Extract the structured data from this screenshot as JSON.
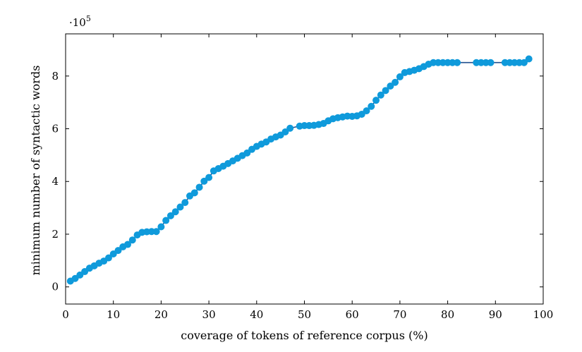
{
  "chart_data": {
    "type": "line",
    "xlabel": "coverage of tokens of reference corpus (%)",
    "ylabel": "minimum number of syntactic words",
    "y_multiplier": "·10",
    "y_multiplier_exponent": "5",
    "xlim": [
      0,
      100
    ],
    "ylim": [
      -0.65,
      9.6
    ],
    "xticks": [
      0,
      10,
      20,
      30,
      40,
      50,
      60,
      70,
      80,
      90,
      100
    ],
    "yticks": [
      0,
      2,
      4,
      6,
      8
    ],
    "grid": false,
    "line_color": "#1f4f8f",
    "marker_color": "#0f9adb",
    "series": [
      {
        "x": [
          1,
          2,
          3,
          4,
          5,
          6,
          7,
          8,
          9,
          10,
          11,
          12,
          13,
          14,
          15,
          16,
          17,
          18,
          19,
          20,
          21,
          22,
          23,
          24,
          25,
          26,
          27,
          28,
          29,
          30,
          31,
          32,
          33,
          34,
          35,
          36,
          37,
          38,
          39,
          40,
          41,
          42,
          43,
          44,
          45,
          46,
          47,
          49,
          50,
          51,
          52,
          53,
          54,
          55,
          56,
          57,
          58,
          59,
          60,
          61,
          62,
          63,
          64,
          65,
          66,
          67,
          68,
          69,
          70,
          71,
          72,
          73,
          74,
          75,
          76,
          77,
          78,
          79,
          80,
          81,
          82,
          86,
          87,
          88,
          89,
          92,
          93,
          94,
          95,
          96,
          97
        ],
        "y": [
          0.22,
          0.32,
          0.45,
          0.58,
          0.71,
          0.8,
          0.9,
          0.98,
          1.1,
          1.25,
          1.38,
          1.52,
          1.61,
          1.78,
          1.97,
          2.07,
          2.09,
          2.1,
          2.1,
          2.28,
          2.52,
          2.7,
          2.85,
          3.03,
          3.2,
          3.45,
          3.57,
          3.78,
          4.01,
          4.15,
          4.4,
          4.49,
          4.58,
          4.68,
          4.78,
          4.88,
          4.98,
          5.08,
          5.22,
          5.33,
          5.42,
          5.5,
          5.61,
          5.69,
          5.76,
          5.88,
          6.02,
          6.1,
          6.12,
          6.12,
          6.13,
          6.16,
          6.2,
          6.3,
          6.38,
          6.42,
          6.45,
          6.48,
          6.47,
          6.49,
          6.55,
          6.68,
          6.85,
          7.08,
          7.28,
          7.45,
          7.62,
          7.76,
          7.97,
          8.13,
          8.17,
          8.22,
          8.28,
          8.36,
          8.45,
          8.51,
          8.51,
          8.51,
          8.51,
          8.51,
          8.51,
          8.51,
          8.51,
          8.51,
          8.51,
          8.51,
          8.51,
          8.51,
          8.51,
          8.51,
          8.65
        ]
      }
    ]
  }
}
